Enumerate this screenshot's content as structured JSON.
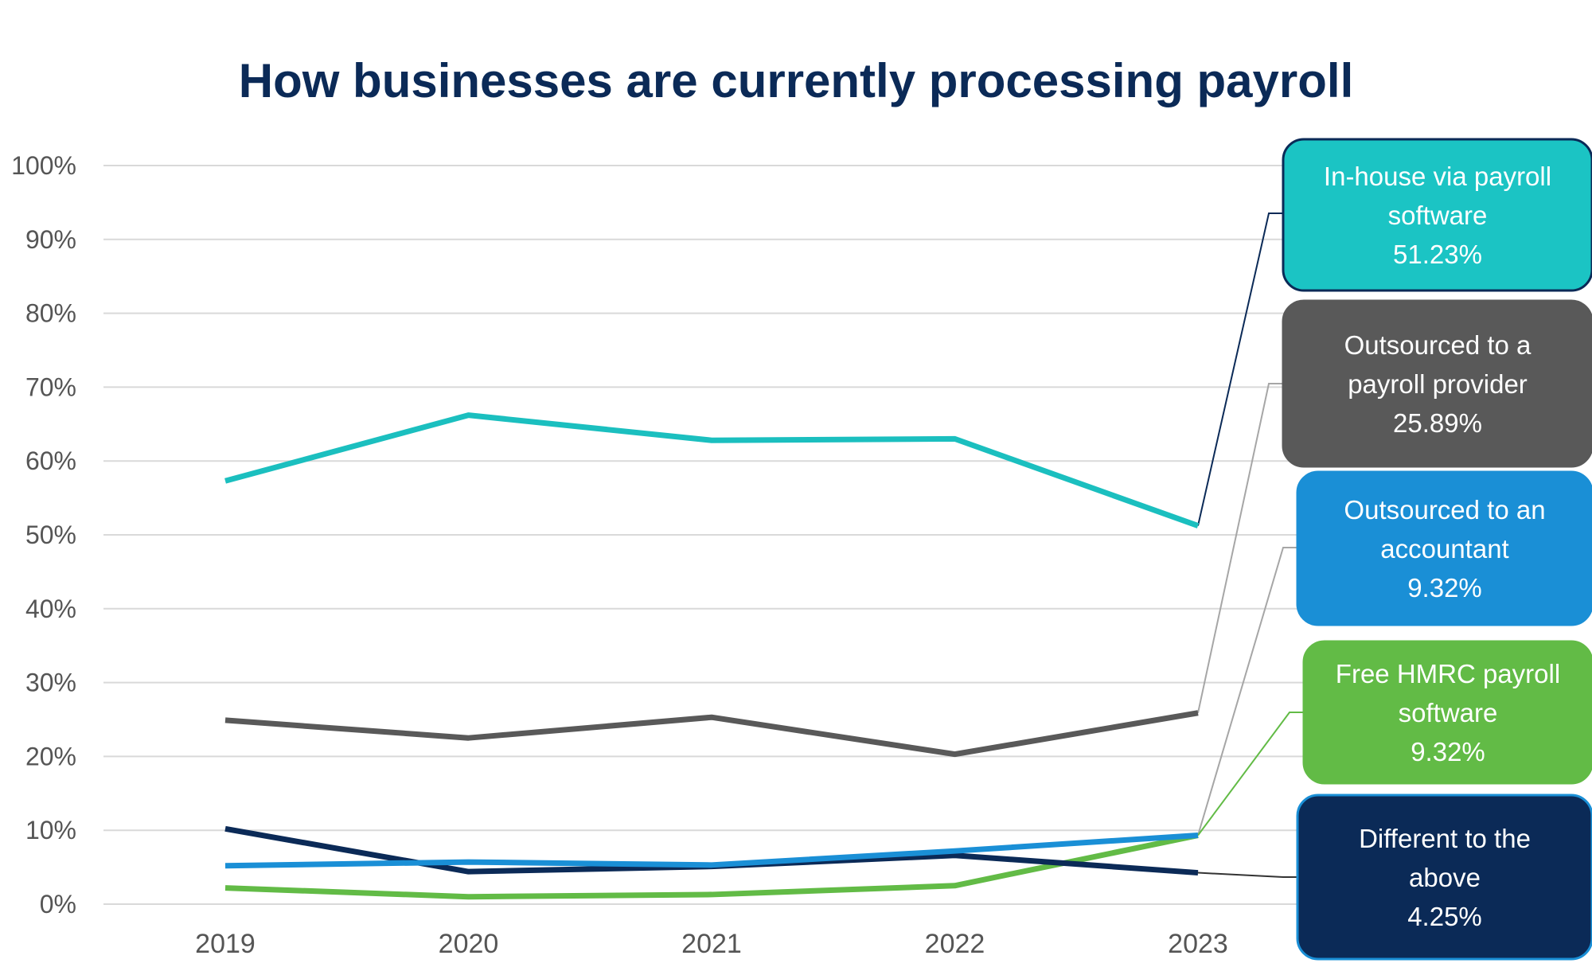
{
  "chart_data": {
    "type": "line",
    "title": "How businesses are currently processing payroll",
    "x": [
      "2019",
      "2020",
      "2021",
      "2022",
      "2023"
    ],
    "ylim": [
      0,
      100
    ],
    "yticks": [
      "0%",
      "10%",
      "20%",
      "30%",
      "40%",
      "50%",
      "60%",
      "70%",
      "80%",
      "90%",
      "100%"
    ],
    "grid": true,
    "legend": "callouts right",
    "series": [
      {
        "key": "inhouse",
        "color": "#1bbfbf",
        "values": [
          57.3,
          66.2,
          62.8,
          63.0,
          51.23
        ],
        "callout": {
          "line1": "In-house via payroll",
          "line2": "software",
          "line3": "51.23%",
          "fill": "#1bc4c4",
          "border": "#0b2a57",
          "leader": "#0b2a57"
        }
      },
      {
        "key": "payroll_provider",
        "color": "#595959",
        "values": [
          24.9,
          22.5,
          25.3,
          20.3,
          25.89
        ],
        "callout": {
          "line1": "Outsourced to a",
          "line2": "payroll provider",
          "line3": "25.89%",
          "fill": "#595959",
          "border": "#595959",
          "leader": "#a6a6a6"
        }
      },
      {
        "key": "accountant",
        "color": "#1a8fd6",
        "values": [
          5.2,
          5.7,
          5.3,
          7.2,
          9.32
        ],
        "callout": {
          "line1": "Outsourced to an",
          "line2": "accountant",
          "line3": "9.32%",
          "fill": "#1a8fd6",
          "border": "#1a8fd6",
          "leader": "#a6a6a6"
        }
      },
      {
        "key": "hmrc",
        "color": "#62bb46",
        "values": [
          2.2,
          1.0,
          1.3,
          2.5,
          9.32
        ],
        "callout": {
          "line1": "Free HMRC payroll",
          "line2": "software",
          "line3": "9.32%",
          "fill": "#62bb46",
          "border": "#62bb46",
          "leader": "#62bb46"
        }
      },
      {
        "key": "different",
        "color": "#0b2a57",
        "values": [
          10.2,
          4.4,
          5.1,
          6.6,
          4.25
        ],
        "callout": {
          "line1": "Different to the",
          "line2": "above",
          "line3": "4.25%",
          "fill": "#0b2a57",
          "border": "#1a8fd6",
          "leader": "#333333"
        }
      }
    ]
  }
}
